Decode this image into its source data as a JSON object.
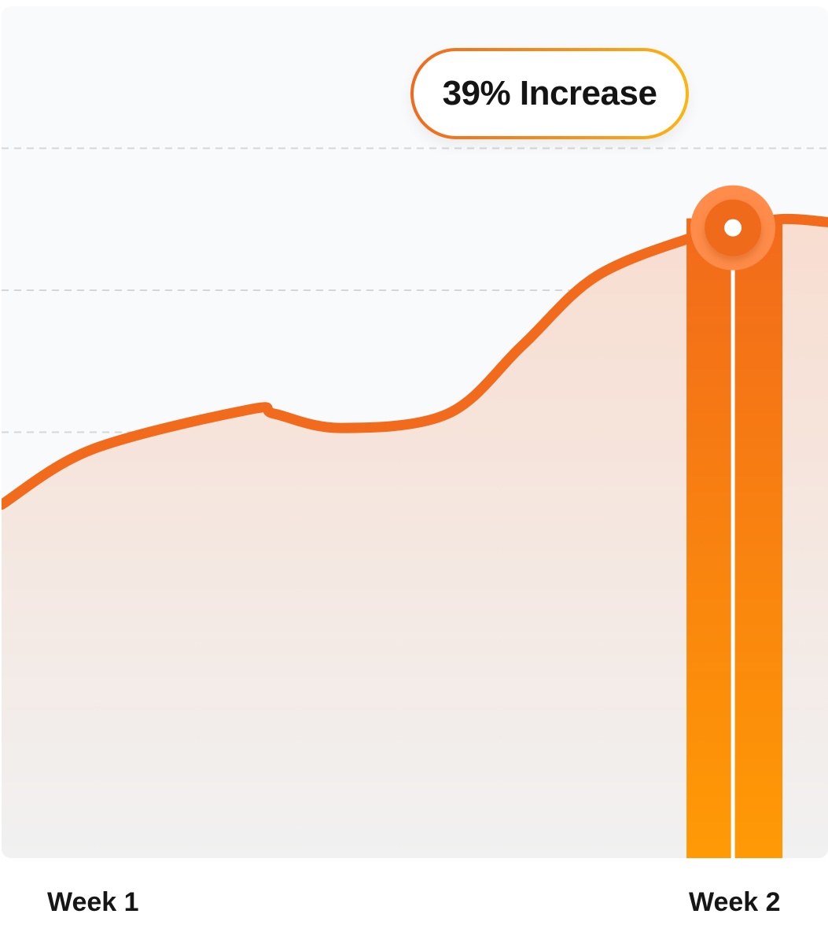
{
  "callout": {
    "text": "39% Increase"
  },
  "colors": {
    "line": "#f26a1b",
    "bar_top": "#f26a1b",
    "bar_bottom": "#ff9a05",
    "area_top": "#f8ddd0",
    "area_bottom": "#f1f1f1",
    "background": "#f8fafc",
    "grid": "#d6d6d6",
    "marker_outer": "#ff8c4a",
    "marker_inner": "#f06a1c"
  },
  "chart_data": {
    "type": "area",
    "categories": [
      "Week 1",
      "Week 2"
    ],
    "x": [
      0,
      0.11,
      0.3,
      0.33,
      0.41,
      0.54,
      0.63,
      0.72,
      0.84,
      0.88,
      0.94,
      1.0
    ],
    "series": [
      {
        "values": [
          2.49,
          2.88,
          3.16,
          3.13,
          3.03,
          3.13,
          3.61,
          4.1,
          4.38,
          4.42,
          4.5,
          4.48
        ]
      }
    ],
    "highlight": {
      "category": "Week 2",
      "x": 0.885,
      "y": 4.44,
      "annotation": "39% Increase"
    },
    "ylim": [
      0,
      6
    ],
    "grid": true,
    "xlabel": "",
    "ylabel": ""
  }
}
